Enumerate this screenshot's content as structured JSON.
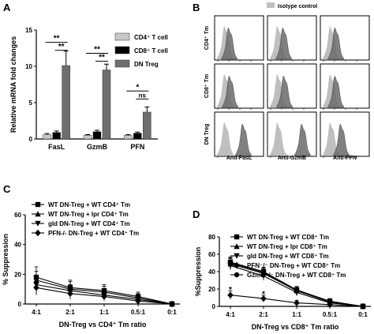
{
  "panels": {
    "A": "A",
    "B": "B",
    "C": "C",
    "D": "D"
  },
  "chart_data": [
    {
      "panel": "A",
      "type": "bar",
      "categories": [
        "FasL",
        "GzmB",
        "PFN"
      ],
      "ylabel": "Relative mRNA fold changes",
      "ylim": [
        0,
        15
      ],
      "yticks": [
        "0",
        "5",
        "10",
        "15"
      ],
      "legend_position": "top-right",
      "series": [
        {
          "name": "CD4⁺ T cell",
          "color": "#c8c8c8",
          "values": [
            0.6,
            0.5,
            0.5
          ],
          "errors": [
            0.15,
            0.1,
            0.1
          ]
        },
        {
          "name": "CD8⁺ T cell",
          "color": "#000000",
          "values": [
            0.9,
            1.0,
            0.8
          ],
          "errors": [
            0.2,
            0.2,
            0.15
          ]
        },
        {
          "name": "DN Treg",
          "color": "#6e6e6e",
          "values": [
            10.1,
            9.5,
            3.7
          ],
          "errors": [
            2.0,
            0.8,
            0.7
          ]
        }
      ],
      "significance": [
        {
          "category": 0,
          "from": 0,
          "to": 2,
          "label": "**",
          "level": 13.3
        },
        {
          "category": 0,
          "from": 1,
          "to": 2,
          "label": "**",
          "level": 12.2
        },
        {
          "category": 1,
          "from": 0,
          "to": 2,
          "label": "**",
          "level": 11.8
        },
        {
          "category": 1,
          "from": 1,
          "to": 2,
          "label": "**",
          "level": 10.7
        },
        {
          "category": 2,
          "from": 0,
          "to": 2,
          "label": "*",
          "level": 6.6
        },
        {
          "category": 2,
          "from": 1,
          "to": 2,
          "label": "ns",
          "level": 5.5
        }
      ]
    },
    {
      "panel": "B",
      "type": "histogram",
      "legend": "Isotype control",
      "rows": [
        "CD4⁺ Tm",
        "CD8⁺ Tm",
        "DN Treg"
      ],
      "columns": [
        "Anti-FasL",
        "Anti-GzmB",
        "Anti-PFN"
      ],
      "isotype_color": "#bfbfbf",
      "stain_color": "#6a6a6a",
      "peak_shift": [
        [
          0.02,
          0.04,
          0.03
        ],
        [
          0.03,
          0.05,
          0.03
        ],
        [
          0.2,
          0.28,
          0.1
        ]
      ]
    },
    {
      "panel": "C",
      "type": "line",
      "categories": [
        "4:1",
        "2:1",
        "1:1",
        "0.5:1",
        "0:1"
      ],
      "xlabel": "DN-Treg vs CD4⁺ Tm ratio",
      "ylabel": "% Suppression",
      "ylim": [
        0,
        60
      ],
      "yticks": [
        "0",
        "20",
        "40",
        "60"
      ],
      "legend_position": "top-left",
      "series": [
        {
          "name": "WT DN-Treg + WT CD4⁺ Tm",
          "marker": "square",
          "values": [
            18,
            11,
            9,
            5,
            0
          ],
          "errors": [
            7,
            5,
            4,
            3,
            0
          ]
        },
        {
          "name": "WT DN-Treg + lpr CD4⁺ Tm",
          "marker": "triangle",
          "values": [
            16,
            10,
            8,
            4,
            0
          ],
          "errors": [
            6,
            5,
            4,
            3,
            0
          ]
        },
        {
          "name": "gld DN-Treg + WT CD4⁺ Tm",
          "marker": "triangle-down",
          "values": [
            13,
            9,
            6,
            3,
            0
          ],
          "errors": [
            6,
            4,
            3,
            2,
            0
          ]
        },
        {
          "name": "PFN-/- DN-Treg + WT CD4⁺ Tm",
          "marker": "diamond",
          "values": [
            11,
            7,
            5,
            2,
            0
          ],
          "errors": [
            5,
            4,
            3,
            2,
            0
          ]
        }
      ]
    },
    {
      "panel": "D",
      "type": "line",
      "categories": [
        "4:1",
        "2:1",
        "1:1",
        "0.5:1",
        "0:1"
      ],
      "xlabel": "DN-Treg vs CD8⁺ Tm ratio",
      "ylabel": "%Suppression",
      "ylim": [
        0,
        80
      ],
      "yticks": [
        "0",
        "20",
        "40",
        "60",
        "80"
      ],
      "legend_position": "top-left",
      "series": [
        {
          "name": "WT DN-Treg + WT CD8⁺ Tm",
          "marker": "square",
          "values": [
            51,
            40,
            19,
            6,
            0
          ],
          "errors": [
            6,
            5,
            4,
            3,
            0
          ]
        },
        {
          "name": "WT DN-Treg + lpr CD8⁺ Tm",
          "marker": "triangle",
          "values": [
            49,
            38,
            18,
            5,
            0
          ],
          "errors": [
            6,
            5,
            4,
            3,
            0
          ]
        },
        {
          "name": "gld DN-Treg + WT CD8⁺ Tm",
          "marker": "triangle-down",
          "values": [
            47,
            35,
            16,
            4,
            0
          ],
          "errors": [
            5,
            5,
            4,
            3,
            0
          ]
        },
        {
          "name": "PFN⁻/⁻ DN-Treg + WT CD8⁺ Tm",
          "marker": "diamond",
          "values": [
            13,
            9,
            4,
            2,
            0
          ],
          "errors": [
            5,
            4,
            3,
            2,
            0
          ]
        },
        {
          "name": "GzmB⁻/⁻ DN-Treg + WT CD8⁺ Tm",
          "marker": "circle",
          "values": [
            50,
            39,
            18,
            5,
            0
          ],
          "errors": [
            6,
            5,
            4,
            3,
            0
          ]
        }
      ],
      "annotations": [
        {
          "category": 0,
          "y": 19,
          "label": "*"
        },
        {
          "category": 1,
          "y": 14,
          "label": "*"
        }
      ]
    }
  ]
}
